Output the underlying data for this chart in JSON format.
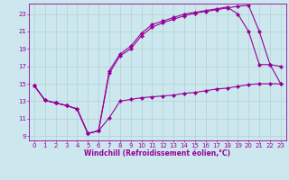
{
  "xlabel": "Windchill (Refroidissement éolien,°C)",
  "bg_color": "#cce8ee",
  "line_color": "#990099",
  "grid_color": "#aacccc",
  "xlim": [
    -0.5,
    23.5
  ],
  "ylim": [
    8.5,
    24.2
  ],
  "yticks": [
    9,
    11,
    13,
    15,
    17,
    19,
    21,
    23
  ],
  "xticks": [
    0,
    1,
    2,
    3,
    4,
    5,
    6,
    7,
    8,
    9,
    10,
    11,
    12,
    13,
    14,
    15,
    16,
    17,
    18,
    19,
    20,
    21,
    22,
    23
  ],
  "line1_x": [
    0,
    1,
    2,
    3,
    4,
    5,
    6,
    7,
    8,
    9,
    10,
    11,
    12,
    13,
    14,
    15,
    16,
    17,
    18,
    19,
    20,
    21,
    22,
    23
  ],
  "line1_y": [
    14.8,
    13.1,
    12.8,
    12.5,
    12.1,
    9.3,
    9.6,
    11.1,
    13.0,
    13.2,
    13.4,
    13.5,
    13.6,
    13.7,
    13.9,
    14.0,
    14.2,
    14.4,
    14.5,
    14.7,
    14.9,
    15.0,
    15.0,
    15.0
  ],
  "line2_x": [
    0,
    1,
    2,
    3,
    4,
    5,
    6,
    7,
    8,
    9,
    10,
    11,
    12,
    13,
    14,
    15,
    16,
    17,
    18,
    19,
    20,
    21,
    22,
    23
  ],
  "line2_y": [
    14.8,
    13.1,
    12.8,
    12.5,
    12.1,
    9.3,
    9.6,
    16.2,
    18.2,
    19.0,
    20.5,
    21.5,
    22.0,
    22.4,
    22.8,
    23.1,
    23.3,
    23.5,
    23.7,
    23.9,
    24.0,
    21.0,
    17.2,
    17.0
  ],
  "line3_x": [
    0,
    1,
    2,
    3,
    4,
    5,
    6,
    7,
    8,
    9,
    10,
    11,
    12,
    13,
    14,
    15,
    16,
    17,
    18,
    19,
    20,
    21,
    22,
    23
  ],
  "line3_y": [
    14.8,
    13.1,
    12.8,
    12.5,
    12.1,
    9.3,
    9.6,
    16.5,
    18.4,
    19.3,
    20.8,
    21.8,
    22.2,
    22.6,
    23.0,
    23.2,
    23.4,
    23.6,
    23.8,
    23.0,
    21.0,
    17.2,
    17.2,
    15.0
  ],
  "marker": "D",
  "markersize": 2.2,
  "linewidth": 0.8,
  "tick_fontsize": 5.0,
  "xlabel_fontsize": 5.5
}
